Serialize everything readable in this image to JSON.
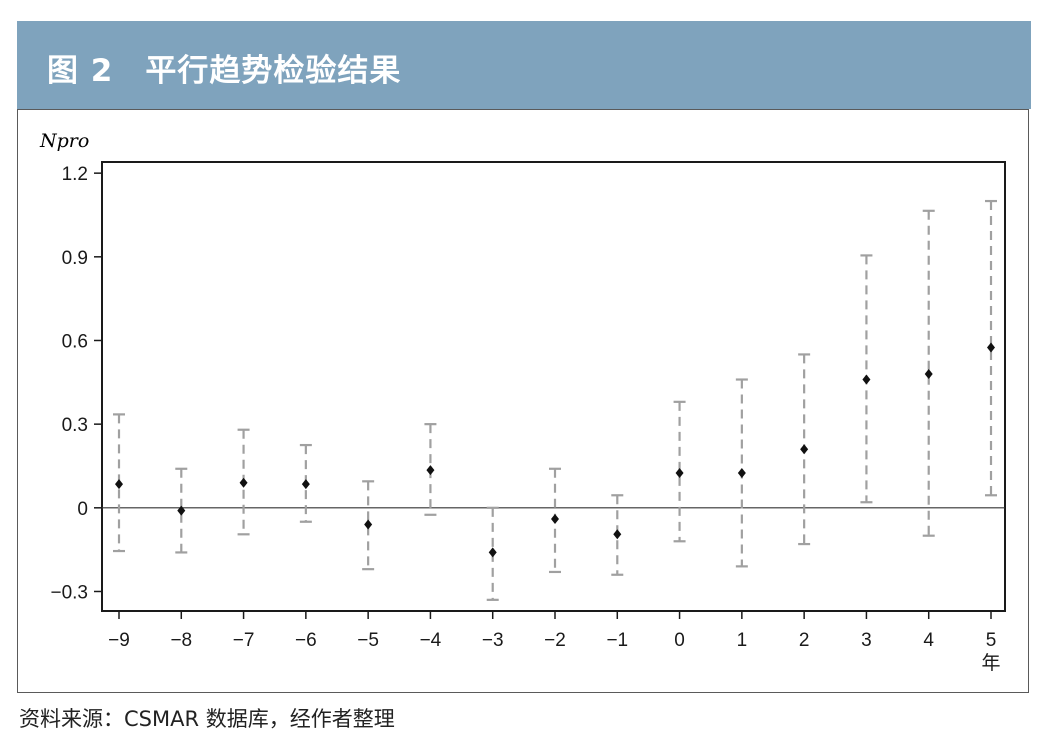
{
  "header": {
    "title": "图 2　平行趋势检验结果"
  },
  "source": "资料来源：CSMAR 数据库，经作者整理",
  "chart_data": {
    "type": "scatter",
    "title": "图 2　平行趋势检验结果",
    "ylabel": "Npro",
    "xlabel": "年",
    "ylim": [
      -0.37,
      1.24
    ],
    "yticks": [
      1.2,
      0.9,
      0.6,
      0.3,
      0,
      -0.3
    ],
    "ytick_labels": [
      "1.2",
      "0.9",
      "0.6",
      "0.3",
      "0",
      "−0.3"
    ],
    "categories": [
      "−9",
      "−8",
      "−7",
      "−6",
      "−5",
      "−4",
      "−3",
      "−2",
      "−1",
      "0",
      "1",
      "2",
      "3",
      "4",
      "5"
    ],
    "series": [
      {
        "estimate": [
          0.085,
          -0.01,
          0.09,
          0.085,
          -0.06,
          0.135,
          -0.16,
          -0.04,
          -0.095,
          0.125,
          0.125,
          0.21,
          0.46,
          0.48,
          0.575
        ],
        "ci_low": [
          -0.155,
          -0.16,
          -0.095,
          -0.05,
          -0.22,
          -0.025,
          -0.33,
          -0.23,
          -0.24,
          -0.12,
          -0.21,
          -0.13,
          0.02,
          -0.1,
          0.045
        ],
        "ci_high": [
          0.335,
          0.14,
          0.28,
          0.225,
          0.095,
          0.3,
          0.0,
          0.14,
          0.045,
          0.38,
          0.46,
          0.55,
          0.905,
          1.065,
          1.1
        ]
      }
    ],
    "reference_line": 0,
    "colors": {
      "point": "#111111",
      "ci": "#a0a0a0",
      "axis": "#1a1a1a",
      "header_bg": "#7fa3bd"
    }
  }
}
